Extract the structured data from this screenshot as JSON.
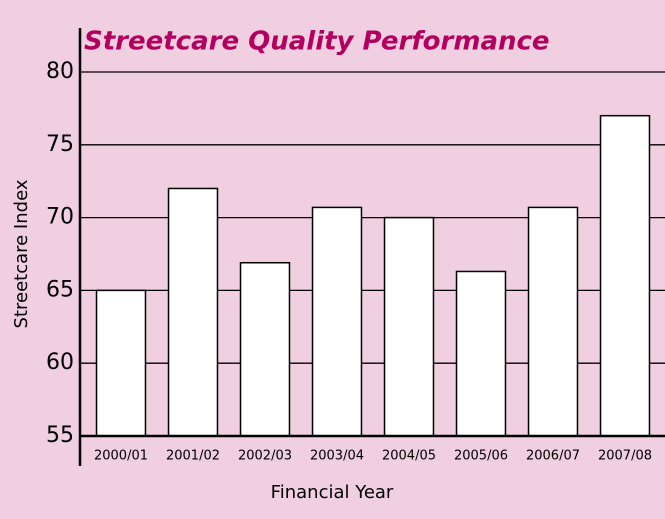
{
  "chart_data": {
    "type": "bar",
    "title": "Streetcare Quality Performance",
    "x_label": "Financial Year",
    "y_label": "Streetcare Index",
    "categories": [
      "2000/01",
      "2001/02",
      "2002/03",
      "2003/04",
      "2004/05",
      "2005/06",
      "2006/07",
      "2007/08"
    ],
    "values": [
      65,
      72,
      66.9,
      70.7,
      70,
      66.3,
      70.7,
      77
    ],
    "color": "#ffffff",
    "ylim": [
      55,
      80
    ],
    "yticks": [
      55,
      60,
      65,
      70,
      75,
      80
    ],
    "grid": true
  }
}
